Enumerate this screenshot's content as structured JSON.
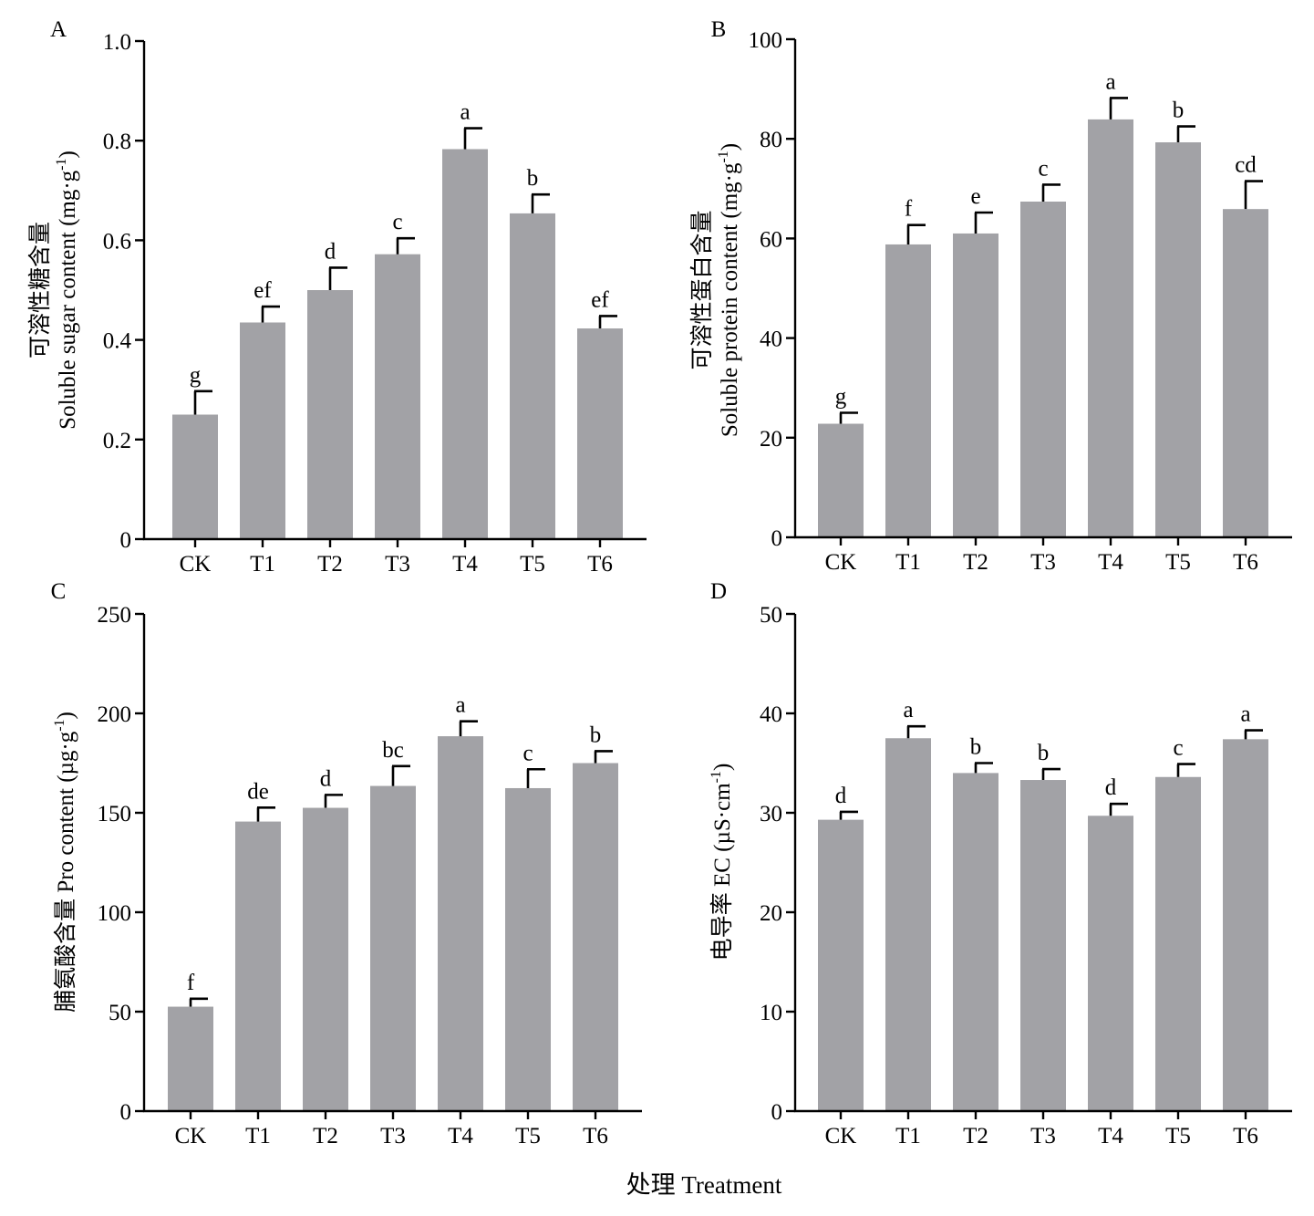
{
  "figure": {
    "xlabel": "处理 Treatment"
  },
  "colors": {
    "bar": "#a2a2a6",
    "axis": "#000000"
  },
  "chart_data": [
    {
      "panel": "A",
      "type": "bar",
      "ylabel_cn": "可溶性糖含量",
      "ylabel_en": "Soluble sugar content (mg·g",
      "ylabel_sup": "-1",
      "ylabel_tail": ")",
      "ylim": [
        0,
        1.0
      ],
      "yticks": [
        0,
        0.2,
        0.4,
        0.6,
        0.8,
        1.0
      ],
      "ytick_labels": [
        "0",
        "0.2",
        "0.4",
        "0.6",
        "0.8",
        "1.0"
      ],
      "categories": [
        "CK",
        "T1",
        "T2",
        "T3",
        "T4",
        "T5",
        "T6"
      ],
      "values": [
        0.25,
        0.435,
        0.5,
        0.572,
        0.783,
        0.654,
        0.423
      ],
      "errors": [
        0.047,
        0.032,
        0.045,
        0.032,
        0.042,
        0.038,
        0.025
      ],
      "letters": [
        "g",
        "ef",
        "d",
        "c",
        "a",
        "b",
        "ef"
      ]
    },
    {
      "panel": "B",
      "type": "bar",
      "ylabel_cn": "可溶性蛋白含量",
      "ylabel_en": "Soluble protein content (mg·g",
      "ylabel_sup": "-1",
      "ylabel_tail": ")",
      "ylim": [
        0,
        100
      ],
      "yticks": [
        0,
        20,
        40,
        60,
        80,
        100
      ],
      "ytick_labels": [
        "0",
        "20",
        "40",
        "60",
        "80",
        "100"
      ],
      "categories": [
        "CK",
        "T1",
        "T2",
        "T3",
        "T4",
        "T5",
        "T6"
      ],
      "values": [
        22.8,
        58.8,
        61.0,
        67.4,
        83.9,
        79.3,
        65.9
      ],
      "errors": [
        2.2,
        3.9,
        4.2,
        3.4,
        4.3,
        3.2,
        5.6
      ],
      "letters": [
        "g",
        "f",
        "e",
        "c",
        "a",
        "b",
        "cd"
      ]
    },
    {
      "panel": "C",
      "type": "bar",
      "ylabel_cn": "脯氨酸含量",
      "ylabel_en": " Pro content (µg·g",
      "ylabel_sup": "-1",
      "ylabel_tail": ")",
      "ylim": [
        0,
        250
      ],
      "yticks": [
        0,
        50,
        100,
        150,
        200,
        250
      ],
      "ytick_labels": [
        "0",
        "50",
        "100",
        "150",
        "200",
        "250"
      ],
      "categories": [
        "CK",
        "T1",
        "T2",
        "T3",
        "T4",
        "T5",
        "T6"
      ],
      "values": [
        52.5,
        145.6,
        152.5,
        163.5,
        188.5,
        162.4,
        175.0
      ],
      "errors": [
        4.0,
        7.0,
        6.5,
        10.0,
        7.5,
        9.5,
        6.0
      ],
      "letters": [
        "f",
        "de",
        "d",
        "bc",
        "a",
        "c",
        "b"
      ]
    },
    {
      "panel": "D",
      "type": "bar",
      "ylabel_cn": "电导率",
      "ylabel_en": " EC (µS·cm",
      "ylabel_sup": "-1",
      "ylabel_tail": ")",
      "ylim": [
        0,
        50
      ],
      "yticks": [
        0,
        10,
        20,
        30,
        40,
        50
      ],
      "ytick_labels": [
        "0",
        "10",
        "20",
        "30",
        "40",
        "50"
      ],
      "categories": [
        "CK",
        "T1",
        "T2",
        "T3",
        "T4",
        "T5",
        "T6"
      ],
      "values": [
        29.3,
        37.5,
        34.0,
        33.3,
        29.7,
        33.6,
        37.4
      ],
      "errors": [
        0.8,
        1.2,
        1.0,
        1.1,
        1.2,
        1.3,
        0.9
      ],
      "letters": [
        "d",
        "a",
        "b",
        "b",
        "d",
        "c",
        "a"
      ]
    }
  ]
}
